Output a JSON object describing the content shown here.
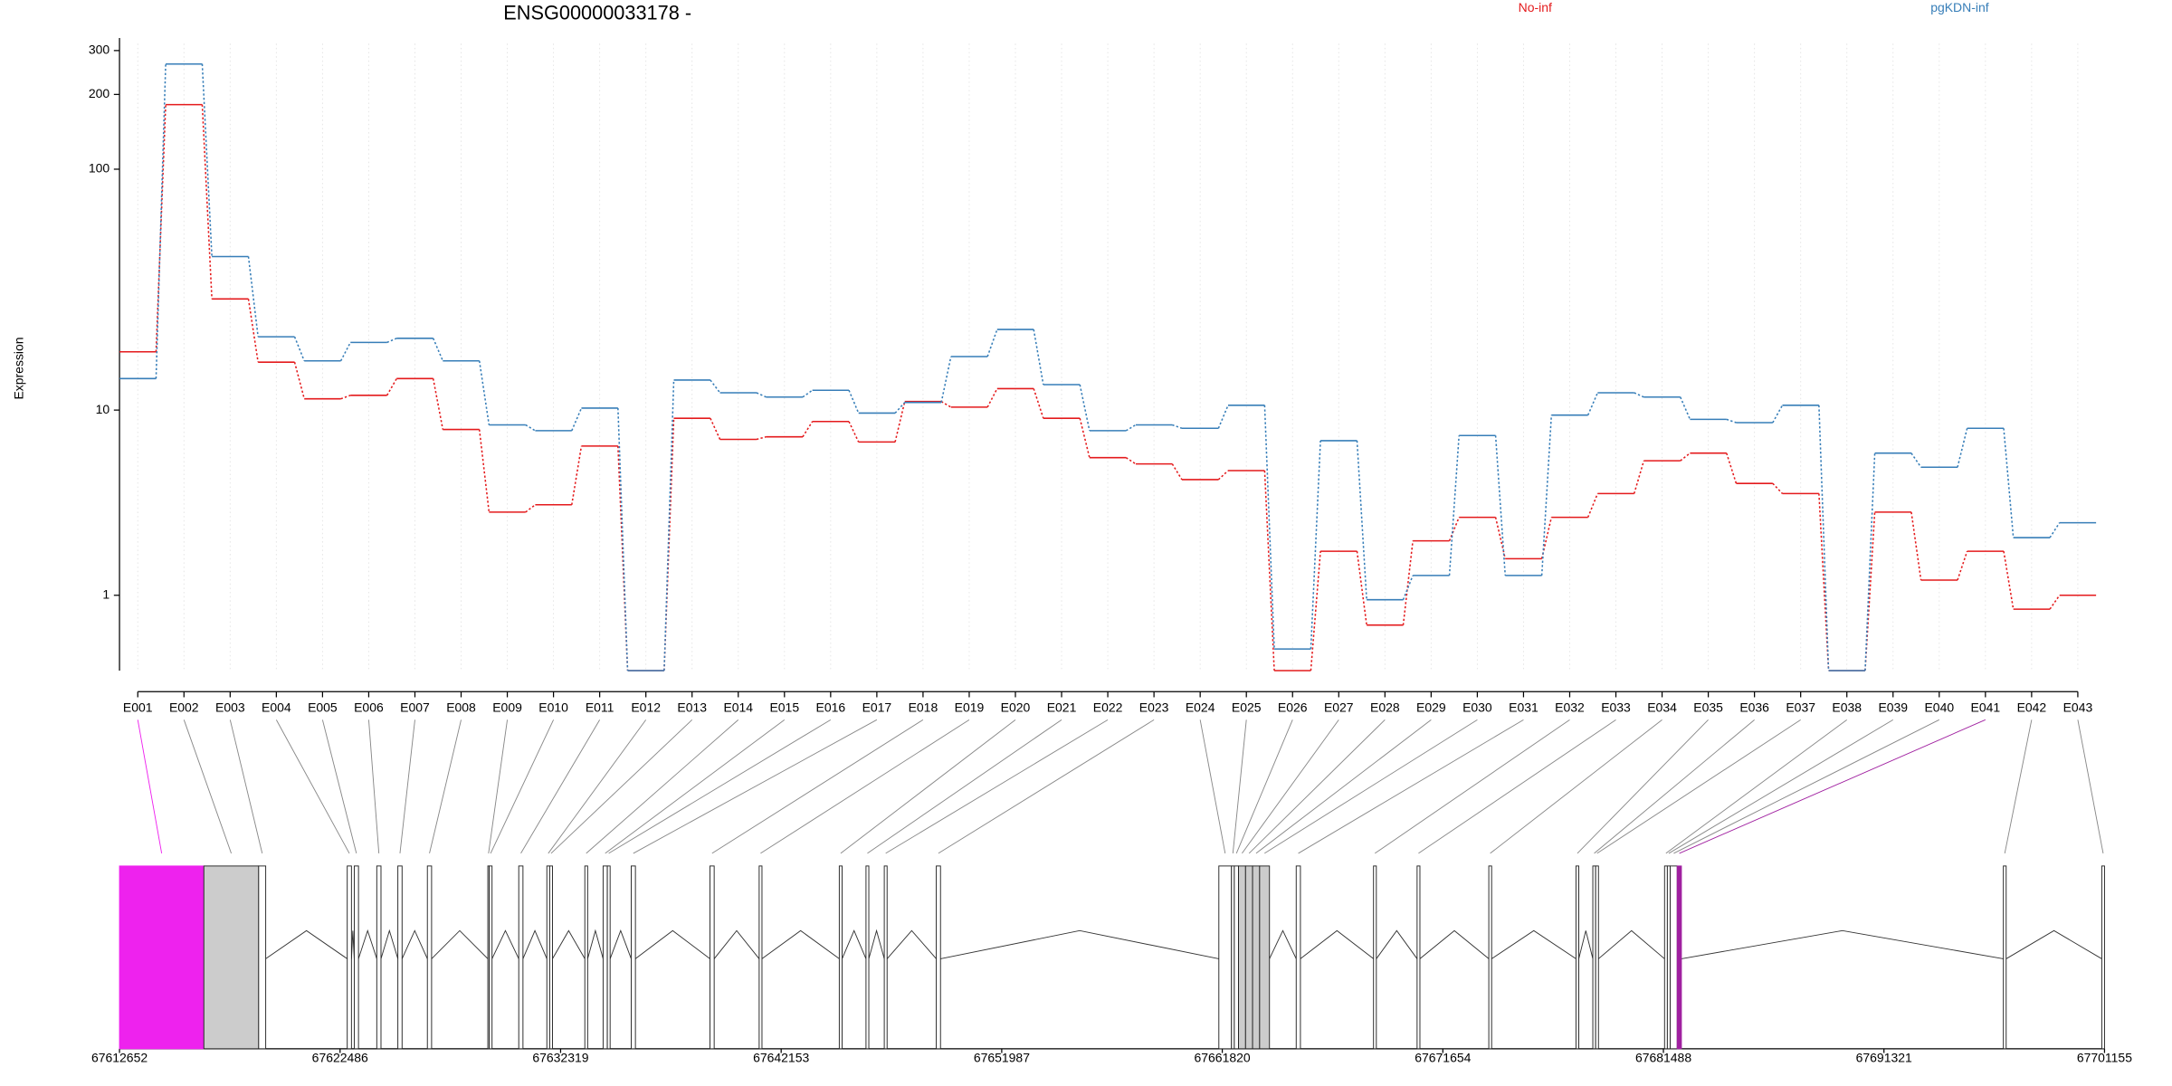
{
  "chart_data": [
    {
      "type": "line",
      "title": "ENSG00000033178 -",
      "y_label": "Expression",
      "scale": "log1p",
      "grid": true,
      "categories": [
        "E001",
        "E002",
        "E003",
        "E004",
        "E005",
        "E006",
        "E007",
        "E008",
        "E009",
        "E010",
        "E011",
        "E012",
        "E013",
        "E014",
        "E015",
        "E016",
        "E017",
        "E018",
        "E019",
        "E020",
        "E021",
        "E022",
        "E023",
        "E024",
        "E025",
        "E026",
        "E027",
        "E028",
        "E029",
        "E030",
        "E031",
        "E032",
        "E033",
        "E034",
        "E035",
        "E036",
        "E037",
        "E038",
        "E039",
        "E040",
        "E041",
        "E042",
        "E043"
      ],
      "ylim": [
        0,
        320
      ],
      "yticks": [
        1,
        10,
        100,
        200,
        300
      ],
      "series": [
        {
          "name": "No-inf",
          "color": "#e41a1c",
          "values": [
            17.8,
            182,
            29.6,
            16.1,
            11.2,
            11.6,
            13.7,
            8.2,
            3.3,
            3.6,
            6.9,
            0,
            9.2,
            7.4,
            7.6,
            8.9,
            7.2,
            10.9,
            10.3,
            12.4,
            9.2,
            6.1,
            5.7,
            4.8,
            5.3,
            0,
            2.0,
            0.52,
            2.3,
            3.1,
            1.8,
            3.1,
            4.1,
            5.9,
            6.4,
            4.6,
            4.1,
            0,
            3.3,
            1.3,
            2.0,
            0.76,
            1.0
          ]
        },
        {
          "name": "pgKDN-inf",
          "color": "#377eb8",
          "values": [
            13.7,
            265,
            44.2,
            20.6,
            16.3,
            19.5,
            20.3,
            16.3,
            8.6,
            8.1,
            10.2,
            0,
            13.5,
            11.9,
            11.4,
            12.2,
            9.7,
            10.8,
            17.0,
            22.1,
            12.9,
            8.1,
            8.6,
            8.3,
            10.5,
            0.22,
            7.3,
            0.92,
            1.4,
            7.7,
            1.4,
            9.5,
            11.9,
            11.4,
            9.1,
            8.8,
            10.5,
            0,
            6.4,
            5.5,
            8.3,
            2.4,
            2.9
          ]
        }
      ]
    },
    {
      "type": "gene_model",
      "xlim": [
        67612652,
        67701155
      ],
      "xticks": [
        67612652,
        67622486,
        67632319,
        67642153,
        67651987,
        67661820,
        67671654,
        67681488,
        67691321,
        67701155
      ],
      "exons": [
        {
          "start": 67612652,
          "end": 67616413,
          "color": "#ee22ee"
        },
        {
          "start": 67616413,
          "end": 67618857,
          "color": "#cccccc"
        },
        {
          "start": 67618857,
          "end": 67619171,
          "color": "#ffffff"
        },
        {
          "start": 67622806,
          "end": 67622994,
          "color": "#ffffff"
        },
        {
          "start": 67623119,
          "end": 67623308,
          "color": "#ffffff"
        },
        {
          "start": 67624123,
          "end": 67624311,
          "color": "#ffffff"
        },
        {
          "start": 67625063,
          "end": 67625251,
          "color": "#ffffff"
        },
        {
          "start": 67626379,
          "end": 67626567,
          "color": "#ffffff"
        },
        {
          "start": 67629074,
          "end": 67629137,
          "color": "#ffffff"
        },
        {
          "start": 67629137,
          "end": 67629262,
          "color": "#ffffff"
        },
        {
          "start": 67630453,
          "end": 67630641,
          "color": "#ffffff"
        },
        {
          "start": 67631706,
          "end": 67631832,
          "color": "#ffffff"
        },
        {
          "start": 67631832,
          "end": 67631958,
          "color": "#ffffff"
        },
        {
          "start": 67633399,
          "end": 67633525,
          "color": "#ffffff"
        },
        {
          "start": 67634214,
          "end": 67634402,
          "color": "#ffffff"
        },
        {
          "start": 67634402,
          "end": 67634527,
          "color": "#ffffff"
        },
        {
          "start": 67635467,
          "end": 67635655,
          "color": "#ffffff"
        },
        {
          "start": 67638978,
          "end": 67639166,
          "color": "#ffffff"
        },
        {
          "start": 67641172,
          "end": 67641297,
          "color": "#ffffff"
        },
        {
          "start": 67644744,
          "end": 67644870,
          "color": "#ffffff"
        },
        {
          "start": 67645935,
          "end": 67646061,
          "color": "#ffffff"
        },
        {
          "start": 67646750,
          "end": 67646876,
          "color": "#ffffff"
        },
        {
          "start": 67649069,
          "end": 67649257,
          "color": "#ffffff"
        },
        {
          "start": 67661667,
          "end": 67662231,
          "color": "#ffffff"
        },
        {
          "start": 67662231,
          "end": 67662356,
          "color": "#ffffff"
        },
        {
          "start": 67662356,
          "end": 67662544,
          "color": "#ffffff"
        },
        {
          "start": 67662544,
          "end": 67662858,
          "color": "#cccccc"
        },
        {
          "start": 67662858,
          "end": 67663171,
          "color": "#cccccc"
        },
        {
          "start": 67663171,
          "end": 67663485,
          "color": "#cccccc"
        },
        {
          "start": 67663485,
          "end": 67663924,
          "color": "#cccccc"
        },
        {
          "start": 67665116,
          "end": 67665304,
          "color": "#ffffff"
        },
        {
          "start": 67668563,
          "end": 67668689,
          "color": "#ffffff"
        },
        {
          "start": 67670506,
          "end": 67670632,
          "color": "#ffffff"
        },
        {
          "start": 67673703,
          "end": 67673829,
          "color": "#ffffff"
        },
        {
          "start": 67677589,
          "end": 67677715,
          "color": "#ffffff"
        },
        {
          "start": 67678341,
          "end": 67678467,
          "color": "#ffffff"
        },
        {
          "start": 67678467,
          "end": 67678593,
          "color": "#ffffff"
        },
        {
          "start": 67681539,
          "end": 67681664,
          "color": "#ffffff"
        },
        {
          "start": 67681664,
          "end": 67681790,
          "color": "#ffffff"
        },
        {
          "start": 67681790,
          "end": 67682103,
          "color": "#ffffff"
        },
        {
          "start": 67682103,
          "end": 67682291,
          "color": "#a020a0"
        },
        {
          "start": 67696645,
          "end": 67696770,
          "color": "#ffffff"
        },
        {
          "start": 67701033,
          "end": 67701155,
          "color": "#ffffff"
        }
      ]
    }
  ]
}
